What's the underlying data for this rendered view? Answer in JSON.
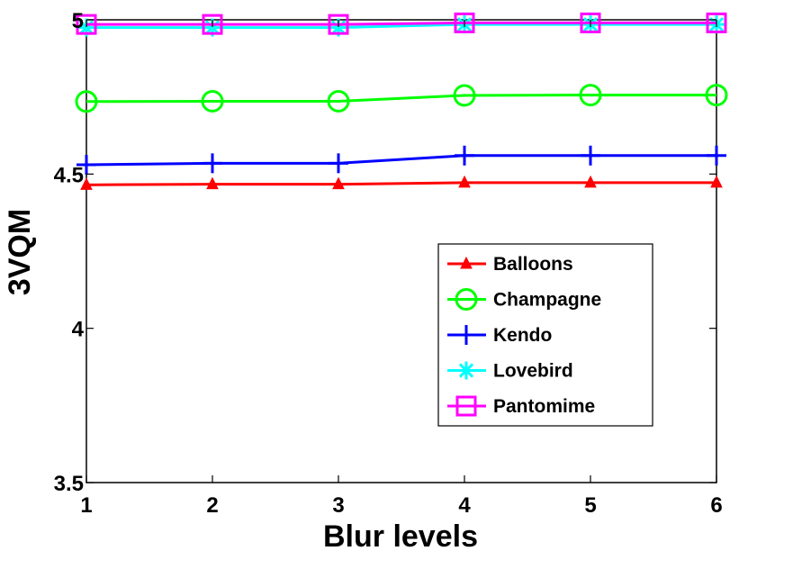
{
  "chart_data": {
    "type": "line",
    "xlabel": "Blur levels",
    "ylabel": "3VQM",
    "x": [
      1,
      2,
      3,
      4,
      5,
      6
    ],
    "xlim": [
      1,
      6
    ],
    "ylim": [
      3.5,
      5
    ],
    "xticks": [
      "1",
      "2",
      "3",
      "4",
      "5",
      "6"
    ],
    "yticks": [
      {
        "value": 3.5,
        "label": "3.5"
      },
      {
        "value": 4,
        "label": "4"
      },
      {
        "value": 4.5,
        "label": "4.5"
      },
      {
        "value": 5,
        "label": "5"
      }
    ],
    "grid": false,
    "legend_position": "lower-right",
    "series": [
      {
        "name": "Balloons",
        "color": "#ff0000",
        "marker": "triangle",
        "values": [
          4.465,
          4.467,
          4.467,
          4.472,
          4.472,
          4.472
        ]
      },
      {
        "name": "Champagne",
        "color": "#00ff00",
        "marker": "circle",
        "values": [
          4.735,
          4.736,
          4.736,
          4.755,
          4.756,
          4.756
        ]
      },
      {
        "name": "Kendo",
        "color": "#0000ff",
        "marker": "plus",
        "values": [
          4.53,
          4.535,
          4.535,
          4.56,
          4.56,
          4.56
        ]
      },
      {
        "name": "Lovebird",
        "color": "#00ffff",
        "marker": "star",
        "values": [
          4.975,
          4.975,
          4.975,
          4.985,
          4.985,
          4.985
        ]
      },
      {
        "name": "Pantomime",
        "color": "#ff00ff",
        "marker": "square",
        "values": [
          4.985,
          4.985,
          4.985,
          4.99,
          4.99,
          4.99
        ]
      }
    ]
  }
}
